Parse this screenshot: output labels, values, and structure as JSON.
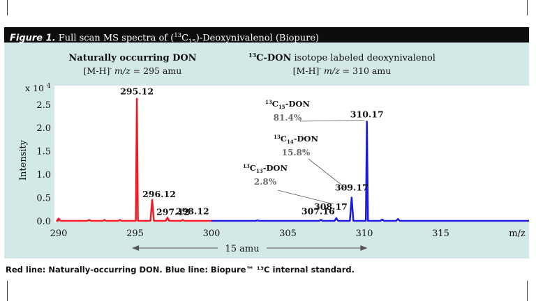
{
  "figure": {
    "label": "Figure 1.",
    "title_pre": " Full scan MS spectra of (",
    "title_sup": "13",
    "title_mid": "C",
    "title_sub": "15",
    "title_post": ")-Deoxynivalenol (Biopure)"
  },
  "caption": "Red line: Naturally-occurring DON. Blue line: Biopure™ ¹³C internal standard.",
  "colors": {
    "red_series": "#ee1c25",
    "blue_series": "#1a1adf",
    "panel": "#d3e9e7",
    "header": "#0d0d0d",
    "annotation_gray": "#6b6b6b"
  },
  "chart_data": {
    "type": "line",
    "xlabel": "m/z",
    "ylabel": "Intensity",
    "y_multiplier": "x 10",
    "y_multiplier_exp": "4",
    "xlim": [
      290,
      322
    ],
    "ylim": [
      0,
      2.9
    ],
    "xticks": [
      290,
      295,
      300,
      305,
      310,
      315
    ],
    "yticks": [
      0.0,
      0.5,
      1.0,
      1.5,
      2.0,
      2.5
    ],
    "ytick_labels": [
      "0.0",
      "0.5",
      "1.0",
      "1.5",
      "2.0",
      "2.5"
    ],
    "grid": false,
    "series": [
      {
        "color": "#ee1c25",
        "x_range": [
          290,
          300
        ],
        "peaks": [
          {
            "x": 290.0,
            "y": 0.05
          },
          {
            "x": 292.0,
            "y": 0.02
          },
          {
            "x": 293.0,
            "y": 0.02
          },
          {
            "x": 294.0,
            "y": 0.02
          },
          {
            "x": 295.12,
            "y": 2.62,
            "label": "295.12"
          },
          {
            "x": 296.12,
            "y": 0.45,
            "label": "296.12"
          },
          {
            "x": 297.12,
            "y": 0.07,
            "label": "297.12"
          },
          {
            "x": 298.12,
            "y": 0.02,
            "label": "298.12"
          }
        ]
      },
      {
        "color": "#1a1adf",
        "x_range": [
          300,
          322
        ],
        "peaks": [
          {
            "x": 303.0,
            "y": 0.01
          },
          {
            "x": 307.16,
            "y": 0.02,
            "label": "307.16"
          },
          {
            "x": 308.17,
            "y": 0.06,
            "label": "308.17"
          },
          {
            "x": 309.17,
            "y": 0.5,
            "label": "309.17"
          },
          {
            "x": 310.17,
            "y": 2.13,
            "label": "310.17"
          },
          {
            "x": 311.17,
            "y": 0.03
          },
          {
            "x": 312.2,
            "y": 0.04
          }
        ]
      }
    ],
    "group_labels": [
      {
        "title": "Naturally occurring DON",
        "formula_pre": "[M-H]",
        "formula_sup": "-",
        "formula_mz": "m/z",
        "formula_post": " = 295 amu"
      },
      {
        "title_sup": "13",
        "title_bold": "C-DON",
        "title_rest": " isotope labeled deoxynivalenol",
        "formula_pre": "[M-H]",
        "formula_sup": "-",
        "formula_mz": "m/z",
        "formula_post": " = 310 amu"
      }
    ],
    "isotope_annotations": [
      {
        "sup": "13",
        "name": "C",
        "sub": "15",
        "suffix": "-DON",
        "pct": "81.4%",
        "target_x": 310.17
      },
      {
        "sup": "13",
        "name": "C",
        "sub": "14",
        "suffix": "-DON",
        "pct": "15.8%",
        "target_x": 309.17
      },
      {
        "sup": "13",
        "name": "C",
        "sub": "13",
        "suffix": "-DON",
        "pct": "2.8%",
        "target_x": 308.17
      }
    ],
    "span_annotation": "15 amu"
  }
}
